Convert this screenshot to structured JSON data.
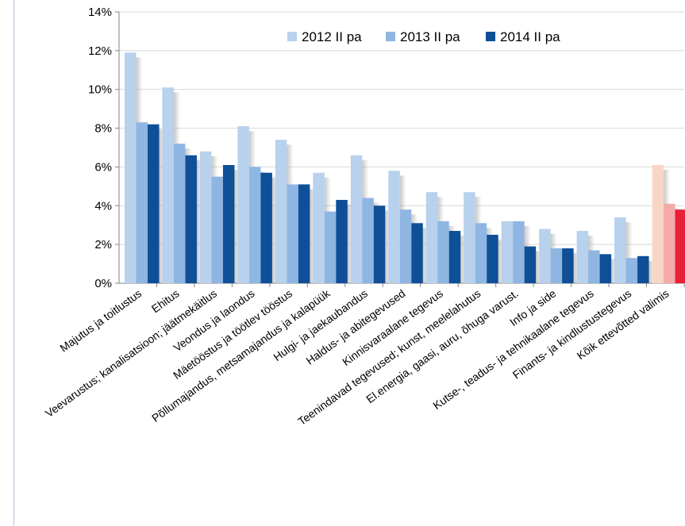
{
  "chart_data": {
    "type": "bar",
    "title": "",
    "xlabel": "",
    "ylabel": "",
    "ylim": [
      0,
      0.14
    ],
    "yticks": [
      "0%",
      "2%",
      "4%",
      "6%",
      "8%",
      "10%",
      "12%",
      "14%"
    ],
    "grid": true,
    "legend_position": "top-right",
    "categories": [
      "Majutus ja toitlustus",
      "Ehitus",
      "Veevarustus; kanalisatsioon; jäätmekäitlus",
      "Veondus ja laondus",
      "Mäetööstus ja töötlev tööstus",
      "Põllumajandus, metsamajandus ja kalapüük",
      "Hulgi- ja jaekaubandus",
      "Haldus- ja abitegevused",
      "Kinnisvaraalane tegevus",
      "Teenindavad tegevused; kunst, meelelahutus",
      "El.energia, gaasi, auru, õhuga varust.",
      "Info ja side",
      "Kutse-, teadus- ja tehnikaalane tegevus",
      "Finants- ja kindlustustegevus",
      "Kõik ettevõtted valimis"
    ],
    "series": [
      {
        "name": "2012 II pa",
        "color": "#b8d1ec",
        "values": [
          0.119,
          0.101,
          0.068,
          0.081,
          0.074,
          0.057,
          0.066,
          0.058,
          0.047,
          0.047,
          0.032,
          0.028,
          0.027,
          0.034,
          0.061
        ]
      },
      {
        "name": "2013 II pa",
        "color": "#8fb6e2",
        "values": [
          0.083,
          0.072,
          0.055,
          0.06,
          0.051,
          0.037,
          0.044,
          0.038,
          0.032,
          0.031,
          0.032,
          0.018,
          0.017,
          0.013,
          0.041
        ]
      },
      {
        "name": "2014 II pa",
        "color": "#0f4f97",
        "values": [
          0.082,
          0.066,
          0.061,
          0.057,
          0.051,
          0.043,
          0.04,
          0.031,
          0.027,
          0.025,
          0.019,
          0.018,
          0.015,
          0.014,
          0.038
        ]
      }
    ],
    "highlight_colors": [
      "#f8d6c6",
      "#f5aaaa",
      "#e8203a"
    ]
  }
}
